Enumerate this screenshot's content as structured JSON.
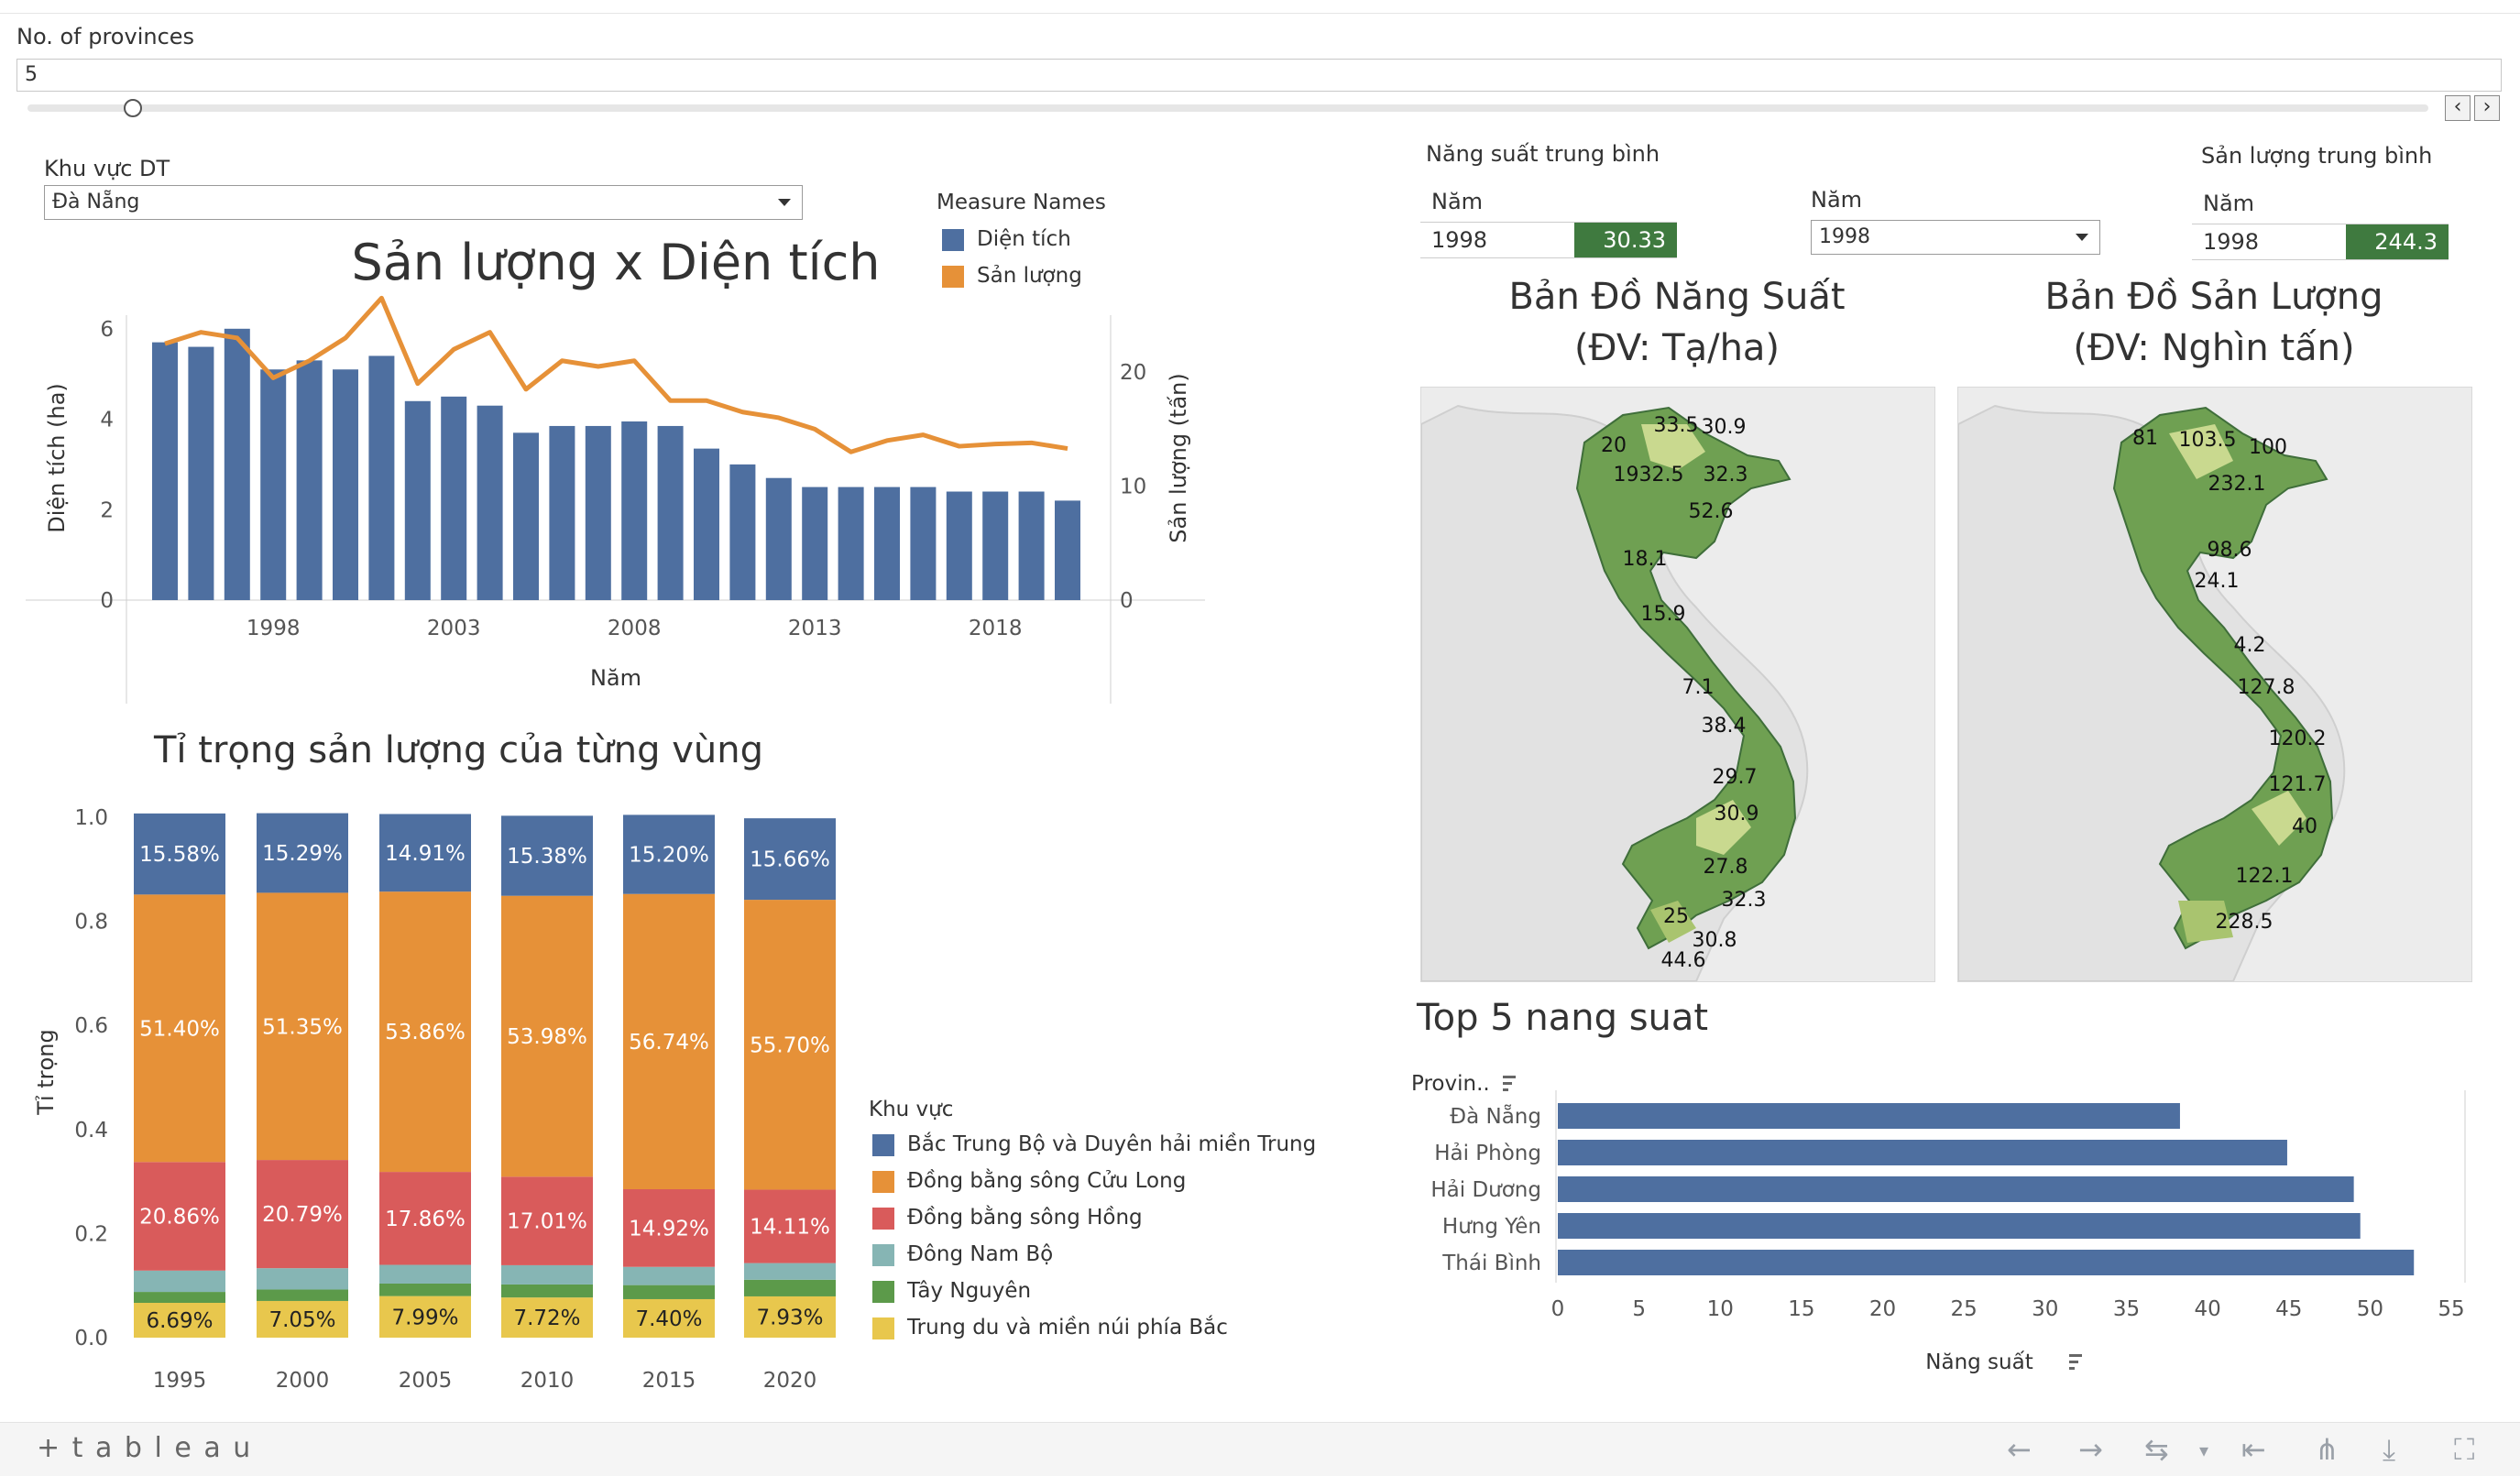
{
  "filter": {
    "label": "No. of provinces",
    "value": "5",
    "slider_fraction": 0.04
  },
  "region_select": {
    "label": "Khu vực DT",
    "value": "Đà Nẵng"
  },
  "stats": {
    "avg_yield_label": "Năng suất trung bình",
    "avg_output_label": "Sản lượng trung bình",
    "year_col": "Năm",
    "yield_year": "1998",
    "yield_value": "30.33",
    "output_year": "1998",
    "output_value": "244.3",
    "year_select_label": "Năm",
    "year_select_value": "1998"
  },
  "colors": {
    "blue": "#4e6fa0",
    "orange": "#e69138",
    "red": "#d95b5b",
    "teal": "#86b5b4",
    "green": "#5c9a4a",
    "yellow": "#e8c74d",
    "map_dark": "#3f7a3f",
    "map_light": "#c9d98f"
  },
  "chart_data": [
    {
      "type": "bar",
      "title": "Sản lượng x Diện tích",
      "xlabel": "Năm",
      "ylabel": "Diện tích (ha)",
      "y2label": "Sản lượng (tấn)",
      "legend_title": "Measure Names",
      "legend_position": "top-right",
      "x": [
        1995,
        1996,
        1997,
        1998,
        1999,
        2000,
        2001,
        2002,
        2003,
        2004,
        2005,
        2006,
        2007,
        2008,
        2009,
        2010,
        2011,
        2012,
        2013,
        2014,
        2015,
        2016,
        2017,
        2018,
        2019,
        2020
      ],
      "x_ticks": [
        "1998",
        "2003",
        "2008",
        "2013",
        "2018"
      ],
      "ylim": [
        0,
        6.3
      ],
      "y_ticks": [
        "0",
        "2",
        "4",
        "6"
      ],
      "y2lim": [
        0,
        25
      ],
      "y2_ticks": [
        "0",
        "10",
        "20"
      ],
      "series": [
        {
          "name": "Diện tích",
          "kind": "bar",
          "axis": "left",
          "values": [
            5.7,
            5.6,
            6.0,
            5.1,
            5.3,
            5.1,
            5.4,
            4.4,
            4.5,
            4.3,
            3.7,
            3.85,
            3.85,
            3.95,
            3.85,
            3.35,
            3.0,
            2.7,
            2.5,
            2.5,
            2.5,
            2.5,
            2.4,
            2.4,
            2.4,
            2.2
          ]
        },
        {
          "name": "Sản lượng",
          "kind": "line",
          "axis": "right",
          "values": [
            22.5,
            23.5,
            23.0,
            19.5,
            21.0,
            23.0,
            26.5,
            19.0,
            22.0,
            23.5,
            18.5,
            21.0,
            20.5,
            21.0,
            17.5,
            17.5,
            16.5,
            16.0,
            15.0,
            13.0,
            14.0,
            14.5,
            13.5,
            13.7,
            13.8,
            13.3
          ]
        }
      ]
    },
    {
      "type": "bar",
      "stacked": true,
      "title": "Tỉ trọng sản lượng của từng vùng",
      "ylabel": "Tỉ trọng",
      "legend_title": "Khu vực",
      "legend_position": "right",
      "categories": [
        "1995",
        "2000",
        "2005",
        "2010",
        "2015",
        "2020"
      ],
      "ylim": [
        0,
        1.0
      ],
      "y_ticks": [
        "0.0",
        "0.2",
        "0.4",
        "0.6",
        "0.8",
        "1.0"
      ],
      "series": [
        {
          "name": "Trung du và miền núi phía Bắc",
          "values": [
            0.0669,
            0.0705,
            0.0799,
            0.0772,
            0.074,
            0.0793
          ],
          "labels": [
            "6.69%",
            "7.05%",
            "7.99%",
            "7.72%",
            "7.40%",
            "7.93%"
          ]
        },
        {
          "name": "Tây Nguyên",
          "values": [
            0.021,
            0.022,
            0.024,
            0.025,
            0.027,
            0.032
          ],
          "labels": []
        },
        {
          "name": "Đông Nam Bộ",
          "values": [
            0.041,
            0.041,
            0.036,
            0.037,
            0.035,
            0.032
          ],
          "labels": []
        },
        {
          "name": "Đồng bằng sông Hồng",
          "values": [
            0.2086,
            0.2079,
            0.1786,
            0.1701,
            0.1492,
            0.1411
          ],
          "labels": [
            "20.86%",
            "20.79%",
            "17.86%",
            "17.01%",
            "14.92%",
            "14.11%"
          ]
        },
        {
          "name": "Đồng bằng sông Cửu Long",
          "values": [
            0.514,
            0.5135,
            0.5386,
            0.5398,
            0.5674,
            0.557
          ],
          "labels": [
            "51.40%",
            "51.35%",
            "53.86%",
            "53.98%",
            "56.74%",
            "55.70%"
          ]
        },
        {
          "name": "Bắc Trung Bộ và Duyên hải miền Trung",
          "values": [
            0.1558,
            0.1529,
            0.1491,
            0.1538,
            0.152,
            0.1566
          ],
          "labels": [
            "15.58%",
            "15.29%",
            "14.91%",
            "15.38%",
            "15.20%",
            "15.66%"
          ]
        }
      ],
      "legend_order": [
        "Bắc Trung Bộ và Duyên hải miền Trung",
        "Đồng bằng sông Cửu Long",
        "Đồng bằng sông Hồng",
        "Đông Nam Bộ",
        "Tây Nguyên",
        "Trung du và miền núi phía Bắc"
      ]
    },
    {
      "type": "bar",
      "orientation": "horizontal",
      "title": "Top 5 nang suat",
      "xlabel": "Năng suất",
      "ylabel": "Provin..",
      "categories": [
        "Đà Nẵng",
        "Hải Phòng",
        "Hải Dương",
        "Hưng Yên",
        "Thái Bình"
      ],
      "values": [
        38.3,
        44.9,
        49.0,
        49.4,
        52.7
      ],
      "xlim": [
        0,
        55
      ],
      "x_ticks": [
        "0",
        "5",
        "10",
        "15",
        "20",
        "25",
        "30",
        "35",
        "40",
        "45",
        "50",
        "55"
      ]
    }
  ],
  "maps": [
    {
      "title_line1": "Bản Đồ Năng Suất",
      "title_line2": "(ĐV: Tạ/ha)",
      "labels": [
        "20",
        "33.5",
        "30.9",
        "1932.5",
        "32.3",
        "52.6",
        "18.1",
        "15.9",
        "7.1",
        "38.4",
        "29.7",
        "30.9",
        "27.8",
        "32.3",
        "25",
        "30.8",
        "44.6"
      ]
    },
    {
      "title_line1": "Bản Đồ Sản Lượng",
      "title_line2": "(ĐV: Nghìn tấn)",
      "labels": [
        "81",
        "103.5",
        "100",
        "232.1",
        "98.6",
        "24.1",
        "4.2",
        "127.8",
        "120.2",
        "121.7",
        "40",
        "122.1",
        "228.5"
      ]
    }
  ],
  "footer": {
    "brand": "+ t a b l e a u"
  }
}
